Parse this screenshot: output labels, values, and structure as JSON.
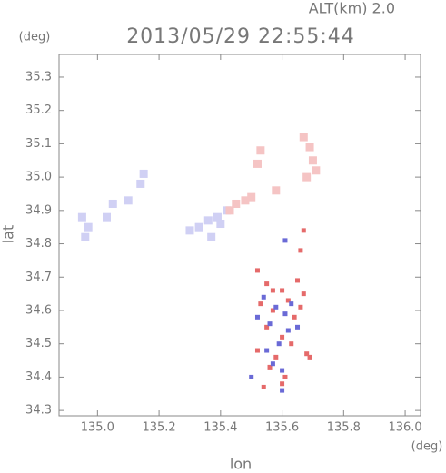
{
  "chart_data": {
    "type": "scatter",
    "title": "2013/05/29 22:55:44",
    "subtitle": "ALT(km) 2.0",
    "x_label": "lon",
    "y_label": "lat",
    "x_unit": "(deg)",
    "y_unit": "(deg)",
    "xlim": [
      134.875,
      136.05
    ],
    "ylim": [
      34.284,
      35.368
    ],
    "xticks": [
      {
        "value": 135,
        "label": "135.0"
      },
      135.2,
      135.4,
      135.6,
      135.8,
      {
        "value": 136,
        "label": "136.0"
      }
    ],
    "yticks": [
      34.3,
      34.4,
      34.5,
      34.6,
      34.7,
      34.8,
      34.9,
      {
        "value": 35,
        "label": "35.0"
      },
      35.1,
      35.2,
      35.3
    ],
    "series": [
      {
        "color": "#d0d0f4",
        "x": [
          134.95,
          134.97,
          134.96,
          135.03,
          135.05,
          135.1,
          135.14,
          135.15,
          135.3,
          135.33,
          135.36,
          135.39,
          135.4,
          135.42,
          135.37
        ],
        "values": [
          34.88,
          34.85,
          34.82,
          34.88,
          34.92,
          34.93,
          34.98,
          35.01,
          34.84,
          34.85,
          34.87,
          34.88,
          34.86,
          34.9,
          34.82
        ]
      },
      {
        "color": "#f5c4c4",
        "x": [
          135.53,
          135.52,
          135.67,
          135.69,
          135.7,
          135.68,
          135.71,
          135.45,
          135.48,
          135.5,
          135.58,
          135.43
        ],
        "values": [
          35.08,
          35.04,
          35.12,
          35.09,
          35.05,
          35.0,
          35.02,
          34.92,
          34.93,
          34.94,
          34.96,
          34.9
        ]
      },
      {
        "color": "#e56a6a",
        "x": [
          135.52,
          135.55,
          135.6,
          135.65,
          135.67,
          135.66,
          135.53,
          135.57,
          135.62,
          135.64,
          135.55,
          135.6,
          135.67,
          135.52,
          135.58,
          135.63,
          135.56,
          135.61,
          135.68,
          135.54,
          135.6,
          135.69,
          135.66,
          135.57
        ],
        "values": [
          34.72,
          34.68,
          34.66,
          34.69,
          34.84,
          34.78,
          34.62,
          34.6,
          34.63,
          34.58,
          34.55,
          34.52,
          34.65,
          34.48,
          34.46,
          34.5,
          34.43,
          34.4,
          34.47,
          34.37,
          34.38,
          34.46,
          34.61,
          34.66
        ]
      },
      {
        "color": "#6a6ad6",
        "x": [
          135.54,
          135.58,
          135.61,
          135.63,
          135.56,
          135.59,
          135.52,
          135.62,
          135.57,
          135.6,
          135.55,
          135.65,
          135.61,
          135.5,
          135.6
        ],
        "values": [
          34.64,
          34.61,
          34.59,
          34.62,
          34.56,
          34.5,
          34.58,
          34.54,
          34.44,
          34.42,
          34.48,
          34.55,
          34.81,
          34.4,
          34.36
        ]
      }
    ]
  }
}
